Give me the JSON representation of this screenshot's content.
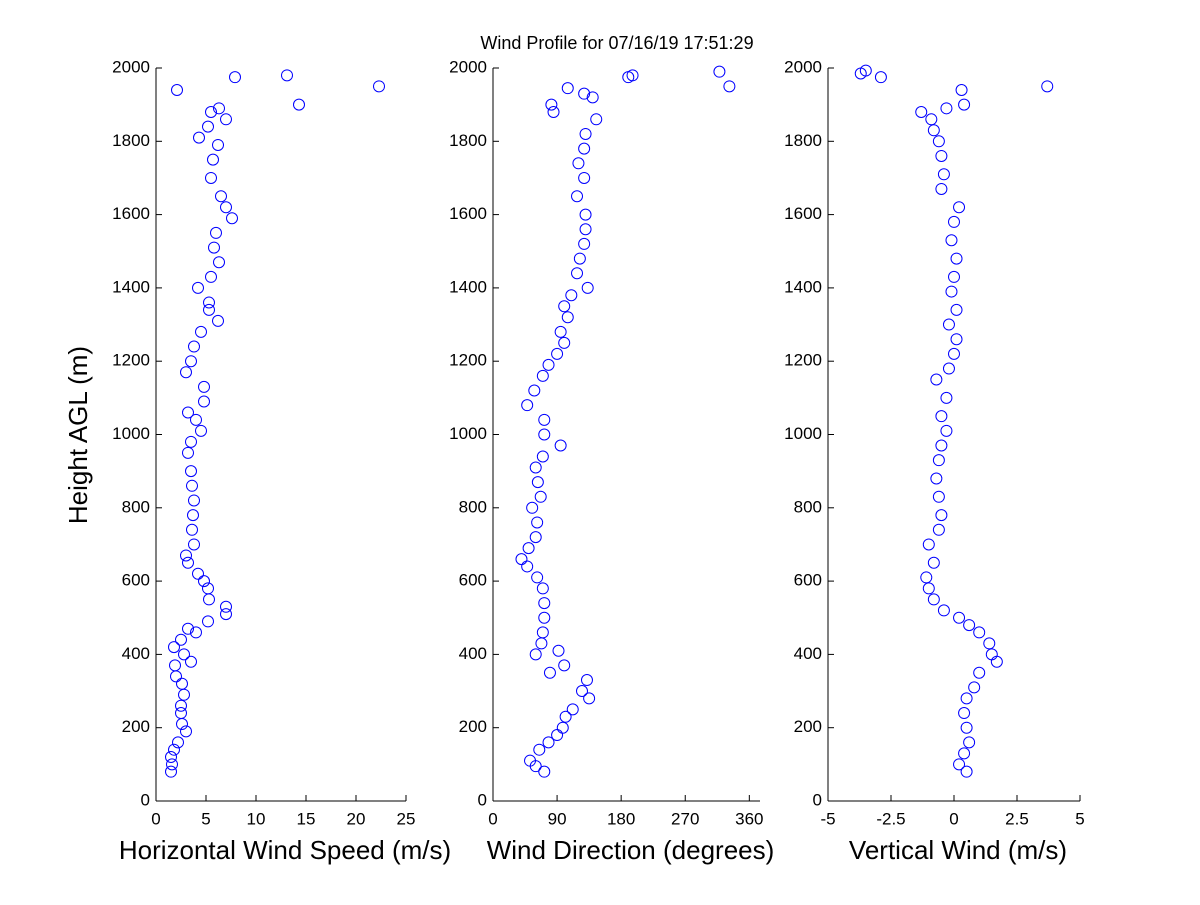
{
  "chart_data": [
    {
      "type": "scatter",
      "title": "Wind Profile for  07/16/19 17:51:29",
      "y_label": "Height AGL (m)",
      "x_label": "Horizontal Wind Speed (m/s)",
      "color": "#0000ff",
      "xlim": [
        0,
        25
      ],
      "ylim": [
        0,
        2000
      ],
      "xticks": [
        0,
        5,
        10,
        15,
        20,
        25
      ],
      "yticks": [
        0,
        200,
        400,
        600,
        800,
        1000,
        1200,
        1400,
        1600,
        1800,
        2000
      ],
      "x": [
        1.5,
        1.6,
        1.5,
        1.8,
        2.2,
        3.0,
        2.6,
        2.5,
        2.5,
        2.8,
        2.6,
        2.0,
        1.9,
        3.5,
        2.8,
        1.8,
        2.5,
        4.0,
        3.2,
        5.2,
        7.0,
        7.0,
        5.3,
        5.2,
        4.8,
        4.2,
        3.2,
        3.0,
        3.8,
        3.6,
        3.7,
        3.8,
        3.6,
        3.5,
        3.2,
        3.5,
        4.5,
        4.0,
        3.2,
        4.8,
        4.8,
        3.0,
        3.5,
        3.8,
        4.5,
        6.2,
        5.3,
        5.3,
        4.2,
        5.5,
        6.3,
        5.8,
        6.0,
        7.6,
        7.0,
        6.5,
        5.5,
        5.7,
        6.2,
        4.3,
        5.2,
        7.0,
        5.5,
        6.3,
        14.3,
        2.1,
        22.3,
        7.9,
        13.1
      ],
      "y": [
        80,
        100,
        120,
        140,
        160,
        190,
        210,
        240,
        260,
        290,
        320,
        340,
        370,
        380,
        400,
        420,
        440,
        460,
        470,
        490,
        510,
        530,
        550,
        580,
        600,
        620,
        650,
        670,
        700,
        740,
        780,
        820,
        860,
        900,
        950,
        980,
        1010,
        1040,
        1060,
        1090,
        1130,
        1170,
        1200,
        1240,
        1280,
        1310,
        1340,
        1360,
        1400,
        1430,
        1470,
        1510,
        1550,
        1590,
        1620,
        1650,
        1700,
        1750,
        1790,
        1810,
        1840,
        1860,
        1880,
        1890,
        1900,
        1940,
        1950,
        1975,
        1980
      ]
    },
    {
      "type": "scatter",
      "x_label": "Wind Direction (degrees)",
      "color": "#0000ff",
      "xlim": [
        0,
        375
      ],
      "ylim": [
        0,
        2000
      ],
      "xticks": [
        0,
        90,
        180,
        270,
        360
      ],
      "yticks": [
        0,
        200,
        400,
        600,
        800,
        1000,
        1200,
        1400,
        1600,
        1800,
        2000
      ],
      "x": [
        72,
        60,
        52,
        65,
        78,
        90,
        98,
        102,
        112,
        135,
        125,
        132,
        80,
        100,
        60,
        92,
        68,
        70,
        72,
        72,
        70,
        62,
        48,
        40,
        50,
        60,
        62,
        55,
        67,
        63,
        60,
        70,
        95,
        72,
        72,
        48,
        58,
        70,
        78,
        90,
        100,
        95,
        105,
        100,
        110,
        133,
        118,
        122,
        128,
        130,
        130,
        118,
        128,
        120,
        128,
        130,
        145,
        85,
        82,
        140,
        128,
        105,
        332,
        190,
        196,
        318
      ],
      "y": [
        80,
        95,
        110,
        140,
        160,
        180,
        200,
        230,
        250,
        280,
        300,
        330,
        350,
        370,
        400,
        410,
        430,
        460,
        500,
        540,
        580,
        610,
        640,
        660,
        690,
        720,
        760,
        800,
        830,
        870,
        910,
        940,
        970,
        1000,
        1040,
        1080,
        1120,
        1160,
        1190,
        1220,
        1250,
        1280,
        1320,
        1350,
        1380,
        1400,
        1440,
        1480,
        1520,
        1560,
        1600,
        1650,
        1700,
        1740,
        1780,
        1820,
        1860,
        1880,
        1900,
        1920,
        1930,
        1945,
        1950,
        1975,
        1980,
        1990
      ]
    },
    {
      "type": "scatter",
      "x_label": "Vertical Wind (m/s)",
      "color": "#0000ff",
      "xlim": [
        -5,
        5
      ],
      "ylim": [
        0,
        2000
      ],
      "xticks": [
        -5,
        -2.5,
        0,
        2.5,
        5
      ],
      "yticks": [
        0,
        200,
        400,
        600,
        800,
        1000,
        1200,
        1400,
        1600,
        1800,
        2000
      ],
      "x": [
        0.5,
        0.2,
        0.4,
        0.6,
        0.5,
        0.4,
        0.5,
        0.8,
        1.0,
        1.7,
        1.5,
        1.4,
        1.0,
        0.6,
        0.2,
        -0.4,
        -0.8,
        -1.0,
        -1.1,
        -0.8,
        -1.0,
        -0.6,
        -0.5,
        -0.6,
        -0.7,
        -0.6,
        -0.5,
        -0.3,
        -0.5,
        -0.3,
        -0.7,
        -0.2,
        0.0,
        0.1,
        -0.2,
        0.1,
        -0.1,
        0.0,
        0.1,
        -0.1,
        0.0,
        0.2,
        -0.5,
        -0.4,
        -0.5,
        -0.6,
        -0.8,
        -0.9,
        -1.3,
        -0.3,
        0.4,
        0.3,
        3.7,
        -2.9,
        -3.7,
        -3.5
      ],
      "y": [
        80,
        100,
        130,
        160,
        200,
        240,
        280,
        310,
        350,
        380,
        400,
        430,
        460,
        480,
        500,
        520,
        550,
        580,
        610,
        650,
        700,
        740,
        780,
        830,
        880,
        930,
        970,
        1010,
        1050,
        1100,
        1150,
        1180,
        1220,
        1260,
        1300,
        1340,
        1390,
        1430,
        1480,
        1530,
        1580,
        1620,
        1670,
        1710,
        1760,
        1800,
        1830,
        1860,
        1880,
        1890,
        1900,
        1940,
        1950,
        1975,
        1985,
        1993
      ]
    }
  ]
}
